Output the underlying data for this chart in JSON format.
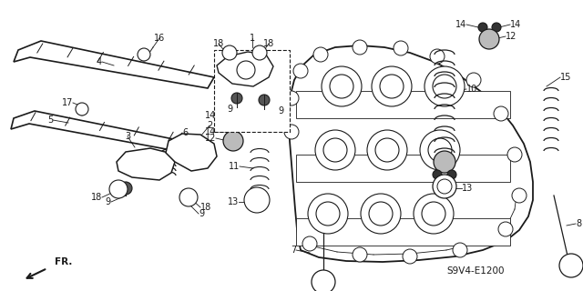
{
  "bg_color": "#ffffff",
  "line_color": "#1a1a1a",
  "diagram_code": "S9V4-E1200",
  "fig_w": 6.4,
  "fig_h": 3.2,
  "dpi": 100
}
